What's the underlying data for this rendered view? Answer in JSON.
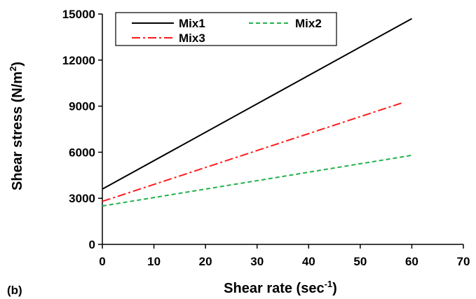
{
  "panel_label": "(b)",
  "chart_data": {
    "type": "line",
    "xlabel": "Shear rate (sec",
    "xlabel_sup": "-1",
    "xlabel_end": ")",
    "ylabel": "Shear stress (N/m",
    "ylabel_sup": "2",
    "ylabel_end": ")",
    "xlim": [
      0,
      70
    ],
    "ylim": [
      0,
      15000
    ],
    "xticks": [
      0,
      10,
      20,
      30,
      40,
      50,
      60,
      70
    ],
    "yticks": [
      0,
      3000,
      6000,
      9000,
      12000,
      15000
    ],
    "grid": false,
    "legend_position": "top",
    "series": [
      {
        "name": "Mix1",
        "color": "#000000",
        "dash": "solid",
        "x": [
          0,
          60
        ],
        "y": [
          3600,
          14700
        ]
      },
      {
        "name": "Mix2",
        "color": "#22b14c",
        "dash": "dashed",
        "x": [
          0,
          60
        ],
        "y": [
          2500,
          5800
        ]
      },
      {
        "name": "Mix3",
        "color": "#ff1a1a",
        "dash": "dash-dot",
        "x": [
          0,
          58
        ],
        "y": [
          2800,
          9200
        ]
      }
    ]
  }
}
